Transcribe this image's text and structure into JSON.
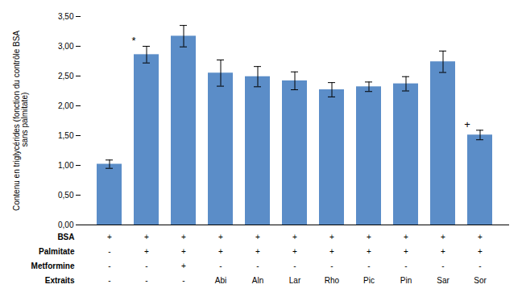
{
  "chart_data": {
    "type": "bar",
    "categories": [
      null,
      null,
      null,
      null,
      null,
      null,
      null,
      null,
      null,
      null,
      null
    ],
    "values": [
      1.02,
      2.86,
      3.17,
      2.55,
      2.49,
      2.42,
      2.27,
      2.32,
      2.37,
      2.74,
      1.51
    ],
    "errors": [
      0.07,
      0.14,
      0.18,
      0.22,
      0.17,
      0.15,
      0.12,
      0.08,
      0.12,
      0.18,
      0.08
    ],
    "color": "#5B8DC8",
    "ylim": [
      0,
      3.5
    ],
    "yticks": [
      {
        "value": 0.0,
        "label": "0,00"
      },
      {
        "value": 0.5,
        "label": "0,50"
      },
      {
        "value": 1.0,
        "label": "1,00"
      },
      {
        "value": 1.5,
        "label": "1,50"
      },
      {
        "value": 2.0,
        "label": "2,00"
      },
      {
        "value": 2.5,
        "label": "2,50"
      },
      {
        "value": 3.0,
        "label": "3,00"
      },
      {
        "value": 3.5,
        "label": "3,50"
      }
    ],
    "ylabel": "Contenu en triglycérides (fonction du contrôle BSA\n sans palmitate)",
    "grid": false,
    "annotations": [
      {
        "index": 1,
        "text": "*"
      },
      {
        "index": 10,
        "text": "+"
      }
    ],
    "table_rows": [
      {
        "label": "BSA",
        "values": [
          "+",
          "+",
          "+",
          "+",
          "+",
          "+",
          "+",
          "+",
          "+",
          "+",
          "+"
        ]
      },
      {
        "label": "Palmitate",
        "values": [
          "-",
          "+",
          "+",
          "+",
          "+",
          "+",
          "+",
          "+",
          "+",
          "+",
          "+"
        ]
      },
      {
        "label": "Metformine",
        "values": [
          "-",
          "-",
          "+",
          "-",
          "-",
          "-",
          "-",
          "-",
          "-",
          "-",
          "-"
        ]
      },
      {
        "label": "Extraits",
        "values": [
          "-",
          "-",
          "-",
          "Abi",
          "Aln",
          "Lar",
          "Rho",
          "Pic",
          "Pin",
          "Sar",
          "Sor"
        ]
      }
    ]
  }
}
